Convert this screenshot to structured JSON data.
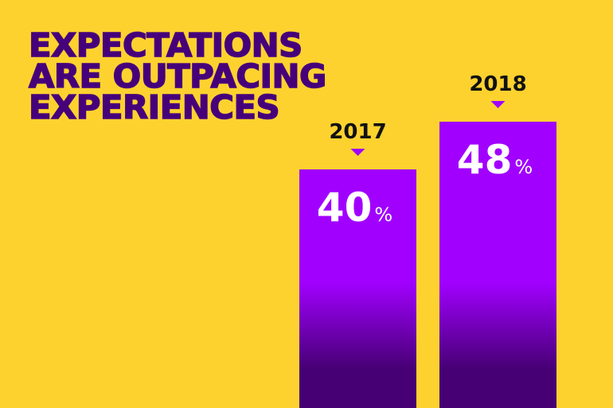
{
  "chart_data": {
    "type": "bar",
    "title": "EXPECTATIONS ARE OUTPACING EXPERIENCES",
    "title_lines": [
      "EXPECTATIONS",
      "ARE OUTPACING",
      "EXPERIENCES"
    ],
    "categories": [
      "2017",
      "2018"
    ],
    "values": [
      40,
      48
    ],
    "value_labels": [
      "40",
      "48"
    ],
    "unit": "%",
    "xlabel": "",
    "ylabel": "",
    "ylim": [
      0,
      100
    ],
    "grid": false,
    "legend": "none"
  },
  "colors": {
    "background": "#fdd22f",
    "title": "#46007a",
    "bar_top": "#a100ff",
    "bar_bottom": "#460073",
    "marker": "#a100ff",
    "year_label": "#111111",
    "value_label": "#ffffff"
  }
}
